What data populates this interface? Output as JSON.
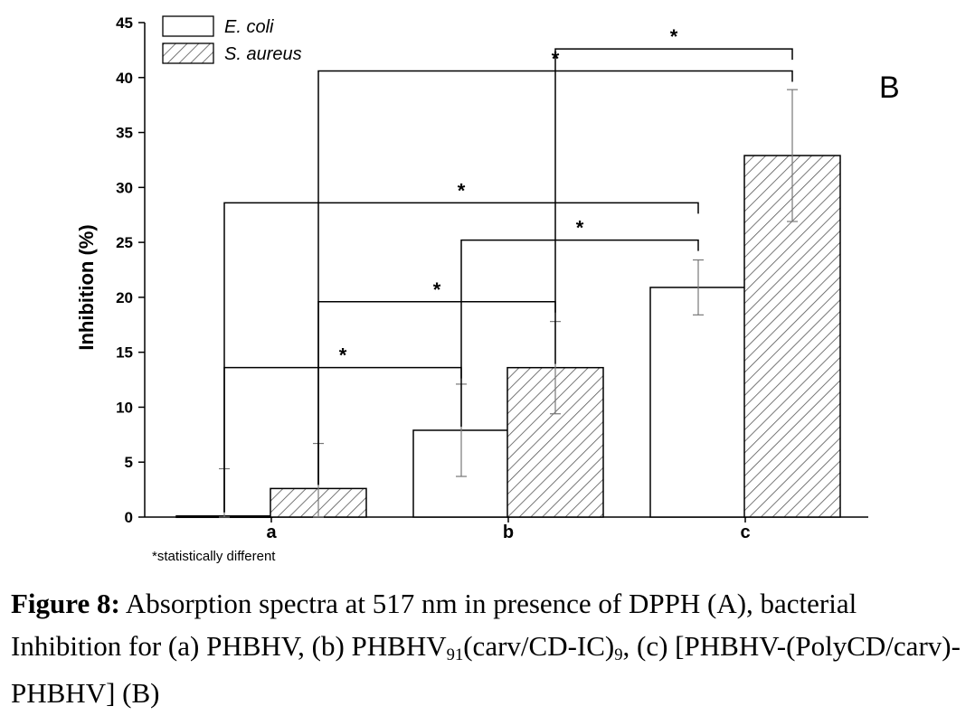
{
  "chart_data": {
    "type": "bar",
    "panel_label": "B",
    "categories": [
      "a",
      "b",
      "c"
    ],
    "ylabel": "Inhibition (%)",
    "xlabel": "",
    "ylim": [
      0,
      45
    ],
    "yticks": [
      0,
      5,
      10,
      15,
      20,
      25,
      30,
      35,
      40,
      45
    ],
    "series": [
      {
        "name": "E. coli",
        "values": [
          0.1,
          7.9,
          20.9
        ],
        "errors": [
          4.3,
          4.2,
          2.5
        ],
        "fill": "open",
        "color": "#000000"
      },
      {
        "name": "S. aureus",
        "values": [
          2.6,
          13.6,
          32.9
        ],
        "errors": [
          4.1,
          4.2,
          6.0
        ],
        "fill": "hatched",
        "color": "#555555"
      }
    ],
    "significance": [
      {
        "from": "a/E. coli",
        "to": "b/E. coli",
        "y": 13.6,
        "mark": "*"
      },
      {
        "from": "a/S. aureus",
        "to": "b/S. aureus",
        "y": 19.6,
        "mark": "*"
      },
      {
        "from": "b/E. coli",
        "to": "c/E. coli",
        "y": 25.2,
        "mark": "*"
      },
      {
        "from": "a/E. coli",
        "to": "c/E. coli",
        "y": 28.6,
        "mark": "*"
      },
      {
        "from": "a/S. aureus",
        "to": "c/S. aureus",
        "y": 40.6,
        "mark": "*"
      },
      {
        "from": "b/S. aureus",
        "to": "c/S. aureus",
        "y": 42.6,
        "mark": "*"
      }
    ],
    "footnote": "*statistically different",
    "grid": false,
    "legend": "top-left"
  },
  "caption": {
    "label": "Figure 8:",
    "line1": "Absorption spectra at 517 nm in presence of DPPH (A), bacterial Inhibition for (a) PHBHV, (b) PHBHV",
    "sub1": "91",
    "mid": "(carv/CD-IC)",
    "sub2": "9",
    "end": ", (c) [PHBHV-(PolyCD/carv)-PHBHV] (B)"
  }
}
